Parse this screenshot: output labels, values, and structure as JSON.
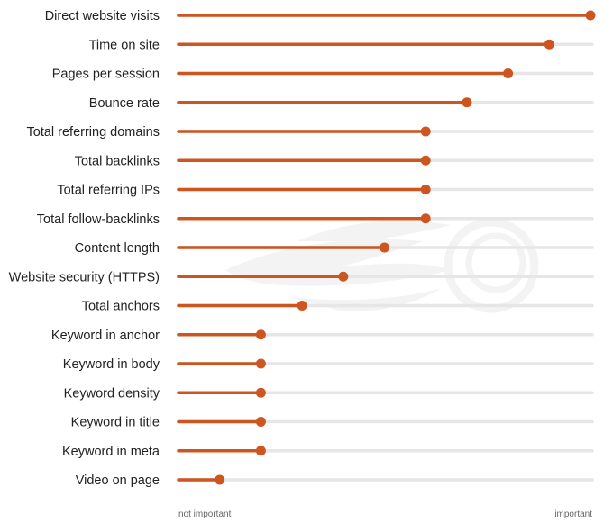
{
  "chart_data": {
    "type": "lollipop",
    "orientation": "horizontal",
    "categories": [
      "Direct website visits",
      "Time on site",
      "Pages per session",
      "Bounce rate",
      "Total referring domains",
      "Total backlinks",
      "Total referring IPs",
      "Total follow-backlinks",
      "Content length",
      "Website security (HTTPS)",
      "Total anchors",
      "Keyword in anchor",
      "Keyword in body",
      "Keyword density",
      "Keyword in title",
      "Keyword in meta",
      "Video on page"
    ],
    "values": [
      1.0,
      0.9,
      0.8,
      0.7,
      0.6,
      0.6,
      0.6,
      0.6,
      0.5,
      0.4,
      0.3,
      0.2,
      0.2,
      0.2,
      0.2,
      0.2,
      0.1
    ],
    "xlim": [
      0,
      1
    ],
    "x_axis": {
      "min_label": "not important",
      "max_label": "important"
    },
    "colors": {
      "accent": "#cc5520",
      "track": "#e6e6e6",
      "watermark": "#f3f3f3"
    },
    "grid": false,
    "legend": "none"
  },
  "watermark": {
    "icon": "semrush-logo-icon"
  }
}
